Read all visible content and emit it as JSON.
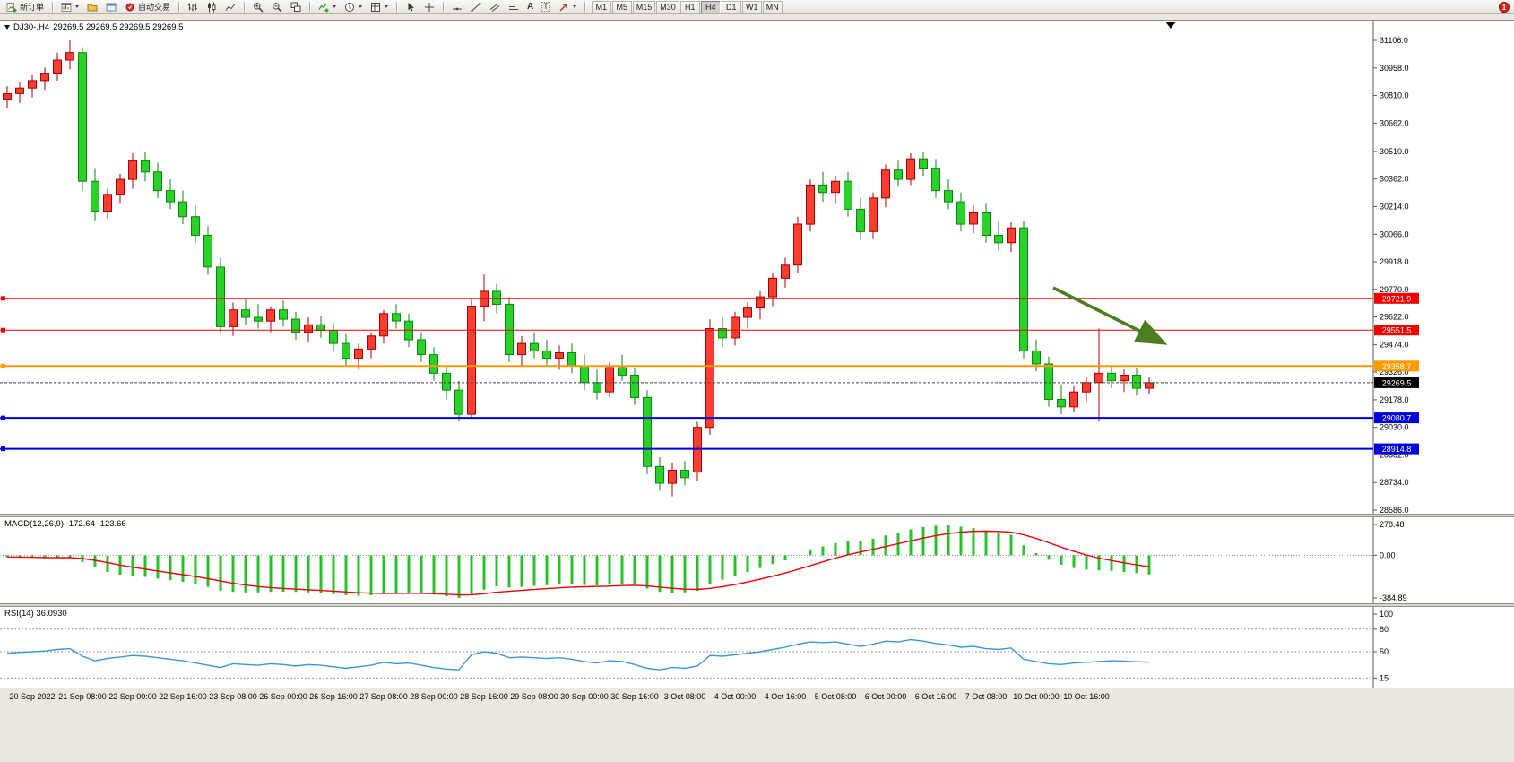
{
  "toolbar": {
    "new_order_label": "新订单",
    "autotrade_label": "自动交易",
    "timeframes": [
      "M1",
      "M5",
      "M15",
      "M30",
      "H1",
      "H4",
      "D1",
      "W1",
      "MN"
    ],
    "active_timeframe": "H4",
    "notification_count": "1",
    "text_icon_glyph": "A",
    "label_icon_glyph": "T",
    "icons": [
      "new-order-icon",
      "new-chart-icon",
      "profiles-icon",
      "terminal-icon",
      "autotrade-icon",
      "bar-chart-icon",
      "candlestick-icon",
      "line-chart-icon",
      "zoom-in-icon",
      "zoom-out-icon",
      "tile-windows-icon",
      "indicators-icon",
      "periods-icon",
      "templates-icon",
      "cursor-icon",
      "crosshair-icon",
      "horizontal-line-icon",
      "trendline-icon",
      "channel-icon",
      "fibonacci-icon",
      "text-icon",
      "label-icon",
      "arrows-icon",
      "notification-badge"
    ]
  },
  "chart": {
    "symbol": "DJ30-,H4",
    "ohlc_text": "29269.5 29269.5 29269.5 29269.5",
    "price_max": 31106.0,
    "price_min": 28586.0,
    "axis_labels": [
      "31106.0",
      "30958.0",
      "30810.0",
      "30662.0",
      "30510.0",
      "30362.0",
      "30214.0",
      "30066.0",
      "29918.0",
      "29770.0",
      "29622.0",
      "29474.0",
      "29326.0",
      "29178.0",
      "29030.0",
      "28882.0",
      "28734.0",
      "28586.0"
    ],
    "hlines": [
      {
        "label": "29721.9",
        "price": 29721.9,
        "color": "#f40000",
        "width": 1,
        "text_color": "#ffffff"
      },
      {
        "label": "29551.5",
        "price": 29551.5,
        "color": "#f40000",
        "width": 1,
        "text_color": "#ffffff"
      },
      {
        "label": "29358.7",
        "price": 29358.7,
        "color": "#ff9900",
        "width": 2,
        "text_color": "#ffffff"
      },
      {
        "label": "29080.7",
        "price": 29080.7,
        "color": "#0000d8",
        "width": 2,
        "text_color": "#ffffff"
      },
      {
        "label": "28914.8",
        "price": 28914.8,
        "color": "#0000d8",
        "width": 2,
        "text_color": "#ffffff"
      }
    ],
    "bid": {
      "value": 29269.5,
      "label": "29269.5",
      "badge_color": "#000000",
      "text_color": "#ffffff"
    },
    "annotation_arrow": {
      "color": "#4c7d21"
    },
    "colors": {
      "up": "#f73e31",
      "up_border": "#a80000",
      "down": "#2ad12a",
      "down_border": "#0c860c"
    },
    "candles": [
      [
        30790,
        30860,
        30740,
        30820
      ],
      [
        30820,
        30880,
        30770,
        30850
      ],
      [
        30850,
        30920,
        30800,
        30890
      ],
      [
        30890,
        30960,
        30840,
        30930
      ],
      [
        30930,
        31040,
        30890,
        31000
      ],
      [
        31000,
        31106,
        30950,
        31040
      ],
      [
        31040,
        31070,
        30300,
        30350
      ],
      [
        30350,
        30420,
        30140,
        30190
      ],
      [
        30190,
        30310,
        30150,
        30280
      ],
      [
        30280,
        30390,
        30230,
        30360
      ],
      [
        30360,
        30500,
        30310,
        30460
      ],
      [
        30460,
        30510,
        30350,
        30400
      ],
      [
        30400,
        30450,
        30260,
        30300
      ],
      [
        30300,
        30360,
        30200,
        30240
      ],
      [
        30240,
        30300,
        30120,
        30160
      ],
      [
        30160,
        30220,
        30020,
        30060
      ],
      [
        30060,
        30110,
        29850,
        29890
      ],
      [
        29890,
        29940,
        29530,
        29570
      ],
      [
        29570,
        29700,
        29520,
        29660
      ],
      [
        29660,
        29720,
        29580,
        29620
      ],
      [
        29620,
        29690,
        29560,
        29600
      ],
      [
        29600,
        29680,
        29540,
        29660
      ],
      [
        29660,
        29710,
        29570,
        29610
      ],
      [
        29610,
        29650,
        29500,
        29540
      ],
      [
        29540,
        29620,
        29490,
        29580
      ],
      [
        29580,
        29630,
        29510,
        29550
      ],
      [
        29550,
        29590,
        29440,
        29480
      ],
      [
        29480,
        29530,
        29360,
        29400
      ],
      [
        29400,
        29480,
        29340,
        29450
      ],
      [
        29450,
        29540,
        29400,
        29520
      ],
      [
        29520,
        29660,
        29480,
        29640
      ],
      [
        29640,
        29690,
        29560,
        29600
      ],
      [
        29600,
        29640,
        29460,
        29500
      ],
      [
        29500,
        29540,
        29380,
        29420
      ],
      [
        29420,
        29460,
        29280,
        29320
      ],
      [
        29320,
        29360,
        29180,
        29230
      ],
      [
        29230,
        29280,
        29060,
        29100
      ],
      [
        29100,
        29720,
        29080,
        29680
      ],
      [
        29680,
        29850,
        29600,
        29760
      ],
      [
        29760,
        29800,
        29640,
        29690
      ],
      [
        29690,
        29730,
        29380,
        29420
      ],
      [
        29420,
        29520,
        29360,
        29480
      ],
      [
        29480,
        29540,
        29400,
        29440
      ],
      [
        29440,
        29500,
        29360,
        29400
      ],
      [
        29400,
        29470,
        29340,
        29430
      ],
      [
        29430,
        29480,
        29320,
        29360
      ],
      [
        29360,
        29420,
        29230,
        29270
      ],
      [
        29270,
        29340,
        29180,
        29220
      ],
      [
        29220,
        29380,
        29190,
        29350
      ],
      [
        29350,
        29420,
        29280,
        29310
      ],
      [
        29310,
        29350,
        29150,
        29190
      ],
      [
        29190,
        29230,
        28780,
        28820
      ],
      [
        28820,
        28870,
        28690,
        28730
      ],
      [
        28730,
        28840,
        28660,
        28800
      ],
      [
        28800,
        28850,
        28720,
        28760
      ],
      [
        28790,
        29060,
        28740,
        29030
      ],
      [
        29030,
        29610,
        28990,
        29560
      ],
      [
        29560,
        29620,
        29460,
        29510
      ],
      [
        29510,
        29650,
        29470,
        29620
      ],
      [
        29620,
        29700,
        29560,
        29670
      ],
      [
        29670,
        29760,
        29610,
        29730
      ],
      [
        29730,
        29860,
        29680,
        29830
      ],
      [
        29830,
        29940,
        29780,
        29900
      ],
      [
        29900,
        30160,
        29860,
        30120
      ],
      [
        30120,
        30360,
        30080,
        30330
      ],
      [
        30330,
        30400,
        30240,
        30290
      ],
      [
        30290,
        30380,
        30230,
        30350
      ],
      [
        30350,
        30400,
        30160,
        30200
      ],
      [
        30200,
        30260,
        30040,
        30080
      ],
      [
        30080,
        30290,
        30040,
        30260
      ],
      [
        30260,
        30440,
        30210,
        30410
      ],
      [
        30410,
        30460,
        30320,
        30360
      ],
      [
        30360,
        30500,
        30330,
        30470
      ],
      [
        30470,
        30510,
        30380,
        30420
      ],
      [
        30420,
        30470,
        30260,
        30300
      ],
      [
        30300,
        30360,
        30200,
        30240
      ],
      [
        30240,
        30290,
        30080,
        30120
      ],
      [
        30120,
        30220,
        30070,
        30180
      ],
      [
        30180,
        30230,
        30020,
        30060
      ],
      [
        30060,
        30140,
        29980,
        30020
      ],
      [
        30020,
        30130,
        29970,
        30100
      ],
      [
        30100,
        30140,
        29400,
        29440
      ],
      [
        29440,
        29500,
        29330,
        29370
      ],
      [
        29370,
        29410,
        29140,
        29180
      ],
      [
        29180,
        29260,
        29100,
        29140
      ],
      [
        29140,
        29250,
        29110,
        29220
      ],
      [
        29220,
        29300,
        29170,
        29270
      ],
      [
        29270,
        29560,
        29060,
        29320
      ],
      [
        29320,
        29360,
        29240,
        29280
      ],
      [
        29280,
        29340,
        29220,
        29310
      ],
      [
        29310,
        29350,
        29200,
        29240
      ],
      [
        29240,
        29300,
        29210,
        29269.5
      ]
    ]
  },
  "macd": {
    "label": "MACD(12,26,9) -172.64 -123.66",
    "axis_labels": [
      "278.48",
      "0.00",
      "-384.89"
    ],
    "max": 278.48,
    "min": -384.89,
    "histogram_color": "#28c128",
    "signal_color": "#f00000",
    "histogram": [
      -15,
      -20,
      -25,
      -28,
      -25,
      -20,
      -60,
      -110,
      -150,
      -175,
      -185,
      -195,
      -210,
      -225,
      -240,
      -260,
      -285,
      -320,
      -330,
      -335,
      -335,
      -330,
      -328,
      -330,
      -335,
      -340,
      -350,
      -360,
      -365,
      -360,
      -350,
      -345,
      -340,
      -345,
      -355,
      -370,
      -385,
      -350,
      -310,
      -280,
      -290,
      -285,
      -275,
      -270,
      -265,
      -262,
      -268,
      -272,
      -265,
      -255,
      -260,
      -300,
      -330,
      -340,
      -335,
      -320,
      -260,
      -220,
      -185,
      -150,
      -115,
      -80,
      -45,
      0,
      45,
      80,
      110,
      125,
      130,
      150,
      180,
      205,
      235,
      255,
      268,
      270,
      258,
      245,
      225,
      205,
      185,
      90,
      20,
      -40,
      -85,
      -115,
      -130,
      -135,
      -140,
      -150,
      -160,
      -172.64
    ]
  },
  "rsi": {
    "label": "RSI(14) 36.0930",
    "axis_labels": [
      "100",
      "80",
      "50",
      "15"
    ],
    "levels": [
      80,
      50,
      15
    ],
    "color": "#3d95dd",
    "values": [
      48,
      49,
      50,
      51,
      53,
      54,
      44,
      38,
      41,
      43,
      45,
      44,
      42,
      40,
      38,
      35,
      32,
      29,
      34,
      33,
      32,
      34,
      33,
      31,
      33,
      32,
      30,
      28,
      30,
      32,
      36,
      34,
      35,
      32,
      29,
      27,
      26,
      46,
      50,
      48,
      42,
      43,
      42,
      41,
      42,
      40,
      37,
      35,
      38,
      37,
      33,
      28,
      26,
      29,
      28,
      31,
      45,
      44,
      46,
      48,
      50,
      53,
      56,
      60,
      63,
      62,
      63,
      60,
      57,
      60,
      64,
      63,
      66,
      64,
      61,
      59,
      56,
      57,
      54,
      53,
      55,
      40,
      37,
      34,
      33,
      35,
      36,
      37,
      38,
      37.5,
      36.5,
      36.09
    ]
  },
  "time_axis": {
    "labels": [
      "20 Sep 2022",
      "21 Sep 08:00",
      "22 Sep 00:00",
      "22 Sep 16:00",
      "23 Sep 08:00",
      "26 Sep 00:00",
      "26 Sep 16:00",
      "27 Sep 08:00",
      "28 Sep 00:00",
      "28 Sep 16:00",
      "29 Sep 08:00",
      "30 Sep 00:00",
      "30 Sep 16:00",
      "3 Oct 08:00",
      "4 Oct 00:00",
      "4 Oct 16:00",
      "5 Oct 08:00",
      "6 Oct 00:00",
      "6 Oct 16:00",
      "7 Oct 08:00",
      "10 Oct 00:00",
      "10 Oct 16:00"
    ]
  }
}
